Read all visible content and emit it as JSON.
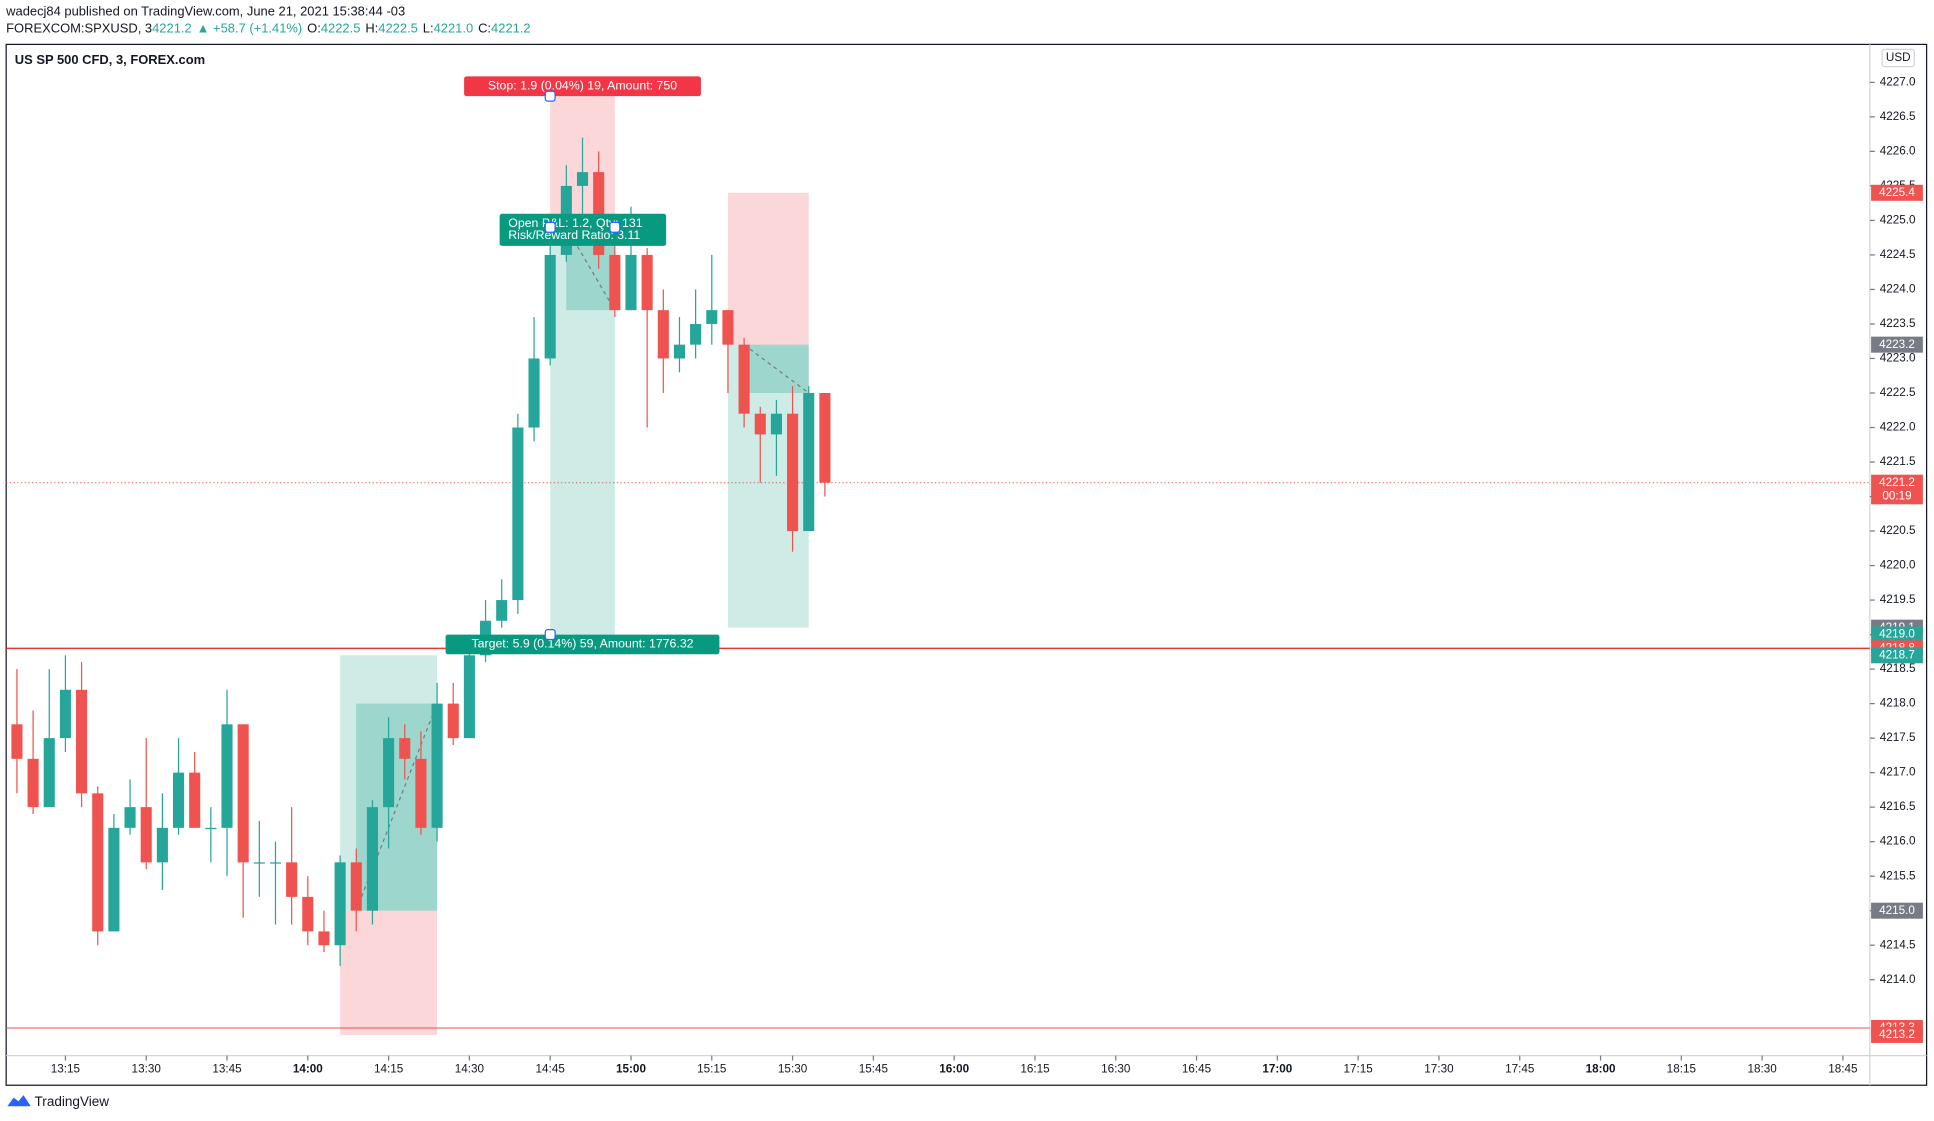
{
  "header": {
    "byline": "wadecj84 published on TradingView.com, June 21, 2021 15:38:44 -03",
    "legend": [
      {
        "text": "FOREXCOM:SPXUSD, 3",
        "color": "#131722"
      },
      {
        "text": "4221.2",
        "color": "#26a69a"
      },
      {
        "text": "▲ +58.7 (+1.41%)",
        "color": "#26a69a"
      },
      {
        "text": "O:",
        "color": "#131722"
      },
      {
        "text": "4222.5",
        "color": "#26a69a"
      },
      {
        "text": "H:",
        "color": "#131722"
      },
      {
        "text": "4222.5",
        "color": "#26a69a"
      },
      {
        "text": "L:",
        "color": "#131722"
      },
      {
        "text": "4221.0",
        "color": "#26a69a"
      },
      {
        "text": "C:",
        "color": "#131722"
      },
      {
        "text": "4221.2",
        "color": "#26a69a"
      }
    ]
  },
  "chart_data": {
    "type": "candlestick",
    "title": "US SP 500 CFD, 3, FOREX.com",
    "currency": "USD",
    "up_color": "#26a69a",
    "down_color": "#ef5350",
    "x": [
      "13:06",
      "13:09",
      "13:12",
      "13:15",
      "13:18",
      "13:21",
      "13:24",
      "13:27",
      "13:30",
      "13:33",
      "13:36",
      "13:39",
      "13:42",
      "13:45",
      "13:48",
      "13:51",
      "13:54",
      "13:57",
      "14:00",
      "14:03",
      "14:06",
      "14:09",
      "14:12",
      "14:15",
      "14:18",
      "14:21",
      "14:24",
      "14:27",
      "14:30",
      "14:33",
      "14:36",
      "14:39",
      "14:42",
      "14:45",
      "14:48",
      "14:51",
      "14:54",
      "14:57",
      "15:00",
      "15:03",
      "15:06",
      "15:09",
      "15:12",
      "15:15",
      "15:18",
      "15:21",
      "15:24",
      "15:27",
      "15:30",
      "15:33",
      "15:36"
    ],
    "open": [
      4217.7,
      4217.2,
      4216.5,
      4217.5,
      4218.2,
      4216.7,
      4214.7,
      4216.2,
      4216.5,
      4215.7,
      4216.2,
      4217.0,
      4216.2,
      4216.2,
      4217.7,
      4215.7,
      4215.7,
      4215.7,
      4215.2,
      4214.7,
      4214.5,
      4215.7,
      4215.0,
      4216.5,
      4217.5,
      4217.2,
      4216.2,
      4218.0,
      4217.5,
      4218.7,
      4219.2,
      4219.5,
      4222.0,
      4223.0,
      4224.5,
      4225.5,
      4225.7,
      4224.5,
      4223.7,
      4224.5,
      4223.7,
      4223.0,
      4223.2,
      4223.5,
      4223.7,
      4223.2,
      4222.2,
      4221.9,
      4222.2,
      4220.5,
      4222.5
    ],
    "high": [
      4218.5,
      4217.9,
      4218.5,
      4218.7,
      4218.6,
      4216.8,
      4216.4,
      4216.9,
      4217.5,
      4216.7,
      4217.5,
      4217.3,
      4216.5,
      4218.2,
      4217.7,
      4216.3,
      4216.0,
      4216.5,
      4215.5,
      4215.0,
      4215.8,
      4215.9,
      4216.6,
      4217.8,
      4217.7,
      4217.6,
      4218.3,
      4218.3,
      4219.0,
      4219.5,
      4219.8,
      4222.2,
      4223.6,
      4224.8,
      4225.8,
      4226.2,
      4226.0,
      4225.0,
      4225.2,
      4224.6,
      4224.0,
      4223.6,
      4224.0,
      4224.5,
      4223.7,
      4223.3,
      4222.3,
      4222.4,
      4222.6,
      4222.6,
      4222.5
    ],
    "low": [
      4216.7,
      4216.4,
      4216.5,
      4217.3,
      4216.5,
      4214.5,
      4214.7,
      4216.1,
      4215.6,
      4215.3,
      4216.1,
      4216.2,
      4215.7,
      4215.5,
      4214.9,
      4215.2,
      4214.8,
      4214.8,
      4214.5,
      4214.4,
      4214.2,
      4214.7,
      4214.8,
      4215.9,
      4216.9,
      4216.1,
      4216.0,
      4217.4,
      4217.5,
      4218.6,
      4219.1,
      4219.3,
      4221.8,
      4222.9,
      4224.4,
      4225.0,
      4224.3,
      4223.6,
      4223.7,
      4222.0,
      4222.5,
      4222.8,
      4223.0,
      4223.2,
      4222.5,
      4222.0,
      4221.2,
      4221.3,
      4220.2,
      4220.5,
      4221.0
    ],
    "close": [
      4217.2,
      4216.5,
      4217.5,
      4218.2,
      4216.7,
      4214.7,
      4216.2,
      4216.5,
      4215.7,
      4216.2,
      4217.0,
      4216.2,
      4216.2,
      4217.7,
      4215.7,
      4215.7,
      4215.7,
      4215.2,
      4214.7,
      4214.5,
      4215.7,
      4215.0,
      4216.5,
      4217.5,
      4217.2,
      4216.2,
      4218.0,
      4217.5,
      4218.7,
      4219.2,
      4219.5,
      4222.0,
      4223.0,
      4224.5,
      4225.5,
      4225.7,
      4224.5,
      4223.7,
      4224.5,
      4223.7,
      4223.0,
      4223.2,
      4223.5,
      4223.7,
      4223.2,
      4222.2,
      4221.9,
      4222.2,
      4220.5,
      4222.5,
      4221.2
    ],
    "ylim": [
      4212.9,
      4227.55
    ],
    "yticks": [
      {
        "value": 4214,
        "label": "4214.0"
      },
      {
        "value": 4214.5,
        "label": "4214.5"
      },
      {
        "value": 4215,
        "label": "4215.0"
      },
      {
        "value": 4215.5,
        "label": "4215.5"
      },
      {
        "value": 4216,
        "label": "4216.0"
      },
      {
        "value": 4216.5,
        "label": "4216.5"
      },
      {
        "value": 4217,
        "label": "4217.0"
      },
      {
        "value": 4217.5,
        "label": "4217.5"
      },
      {
        "value": 4218,
        "label": "4218.0"
      },
      {
        "value": 4218.5,
        "label": "4218.5"
      },
      {
        "value": 4219,
        "label": "4219.0"
      },
      {
        "value": 4219.5,
        "label": "4219.5"
      },
      {
        "value": 4220,
        "label": "4220.0"
      },
      {
        "value": 4220.5,
        "label": "4220.5"
      },
      {
        "value": 4221,
        "label": "4221.0"
      },
      {
        "value": 4221.5,
        "label": "4221.5"
      },
      {
        "value": 4222,
        "label": "4222.0"
      },
      {
        "value": 4222.5,
        "label": "4222.5"
      },
      {
        "value": 4223,
        "label": "4223.0"
      },
      {
        "value": 4223.5,
        "label": "4223.5"
      },
      {
        "value": 4224,
        "label": "4224.0"
      },
      {
        "value": 4224.5,
        "label": "4224.5"
      },
      {
        "value": 4225,
        "label": "4225.0"
      },
      {
        "value": 4225.5,
        "label": "4225.5"
      },
      {
        "value": 4226,
        "label": "4226.0"
      },
      {
        "value": 4226.5,
        "label": "4226.5"
      },
      {
        "value": 4227,
        "label": "4227.0"
      }
    ],
    "xlim": [
      "13:04",
      "18:50"
    ],
    "xticks": [
      "13:15",
      "13:30",
      "13:45",
      "14:00",
      "14:15",
      "14:30",
      "14:45",
      "15:00",
      "15:15",
      "15:30",
      "15:45",
      "16:00",
      "16:15",
      "16:30",
      "16:45",
      "17:00",
      "17:15",
      "17:30",
      "17:45",
      "18:00",
      "18:15",
      "18:30",
      "18:45"
    ],
    "lines": [
      {
        "value": 4221.2,
        "color": "#ef5350",
        "style": "dotted"
      },
      {
        "value": 4218.8,
        "color": "#e53935",
        "style": "solid"
      },
      {
        "value": 4213.3,
        "color": "#ef5350",
        "style": "thin"
      }
    ],
    "positions": [
      {
        "start": "14:45",
        "end": "14:57",
        "entry": 4224.9,
        "stop": 4226.8,
        "target": 4219.0,
        "pnl_to": 4223.7,
        "stop_label": "Stop: 1.9 (0.04%) 19, Amount: 750",
        "target_label": "Target: 5.9 (0.14%) 59, Amount: 1776.32",
        "info_label": [
          "Open P&L: 1.2, Qty: 131",
          "Risk/Reward Ratio: 3.11"
        ]
      },
      {
        "start": "15:18",
        "end": "15:33",
        "entry": 4223.2,
        "stop": 4225.4,
        "target": 4219.1,
        "pnl_to": 4222.5
      },
      {
        "start": "14:06",
        "end": "14:24",
        "entry": 4215.0,
        "stop": 4213.2,
        "target": 4218.7,
        "pnl_to": 4218.0
      }
    ],
    "price_labels": [
      {
        "value": 4225.4,
        "label": "4225.4",
        "color": "#ef5350"
      },
      {
        "value": 4223.2,
        "label": "4223.2",
        "color": "#787b86"
      },
      {
        "value": 4221.2,
        "label": "4221.2",
        "sublabel": "00:19",
        "color": "#ef5350"
      },
      {
        "value": 4219.1,
        "label": "4219.1",
        "color": "#787b86"
      },
      {
        "value": 4219.0,
        "label": "4219.0",
        "color": "#26a69a"
      },
      {
        "value": 4218.8,
        "label": "4218.8",
        "color": "#ef5350"
      },
      {
        "value": 4218.7,
        "label": "4218.7",
        "color": "#26a69a"
      },
      {
        "value": 4215.0,
        "label": "4215.0",
        "color": "#787b86"
      },
      {
        "value": 4213.3,
        "label": "4213.3",
        "color": "#ef5350"
      },
      {
        "value": 4213.2,
        "label": "4213.2",
        "color": "#ef5350"
      }
    ]
  },
  "footer": {
    "brand": "TradingView"
  }
}
